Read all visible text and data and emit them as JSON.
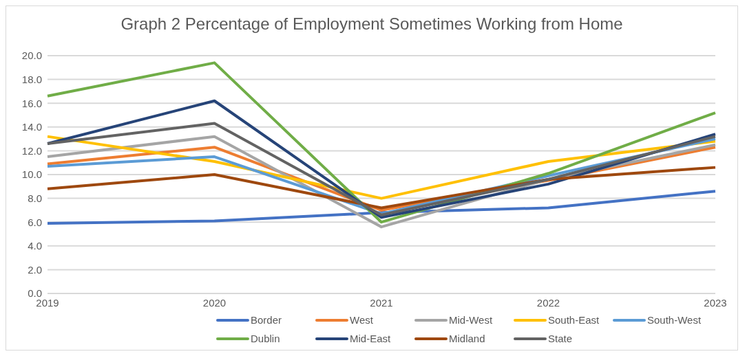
{
  "chart_data": {
    "type": "line",
    "title": "Graph 2 Percentage of Employment Sometimes Working from Home",
    "categories": [
      "2019",
      "2020",
      "2021",
      "2022",
      "2023"
    ],
    "series": [
      {
        "name": "Border",
        "color": "#4472c4",
        "values": [
          5.9,
          6.1,
          6.8,
          7.2,
          8.6
        ]
      },
      {
        "name": "West",
        "color": "#ed7d31",
        "values": [
          10.9,
          12.3,
          7.0,
          9.5,
          12.3
        ]
      },
      {
        "name": "Mid-West",
        "color": "#a5a5a5",
        "values": [
          11.5,
          13.2,
          5.6,
          9.6,
          12.5
        ]
      },
      {
        "name": "South-East",
        "color": "#ffc000",
        "values": [
          13.2,
          11.1,
          8.0,
          11.1,
          12.8
        ]
      },
      {
        "name": "South-West",
        "color": "#5b9bd5",
        "values": [
          10.7,
          11.5,
          6.7,
          9.9,
          13.0
        ]
      },
      {
        "name": "Dublin",
        "color": "#70ad47",
        "values": [
          16.6,
          19.4,
          6.0,
          10.1,
          15.2
        ]
      },
      {
        "name": "Mid-East",
        "color": "#264478",
        "values": [
          12.6,
          16.2,
          6.4,
          9.2,
          13.4
        ]
      },
      {
        "name": "Midland",
        "color": "#9e480e",
        "values": [
          8.8,
          10.0,
          7.2,
          9.6,
          10.6
        ]
      },
      {
        "name": "State",
        "color": "#636363",
        "values": [
          12.6,
          14.3,
          6.6,
          9.6,
          13.2
        ]
      }
    ],
    "ylim": [
      0,
      20
    ],
    "yticks": [
      {
        "value": 0,
        "label": "0.0"
      },
      {
        "value": 2,
        "label": "2.0"
      },
      {
        "value": 4,
        "label": "4.0"
      },
      {
        "value": 6,
        "label": "6.0"
      },
      {
        "value": 8,
        "label": "8.0"
      },
      {
        "value": 10,
        "label": "10.0"
      },
      {
        "value": 12,
        "label": "12.0"
      },
      {
        "value": 14,
        "label": "14.0"
      },
      {
        "value": 16,
        "label": "16.0"
      },
      {
        "value": 18,
        "label": "18.0"
      },
      {
        "value": 20,
        "label": "20.0"
      }
    ],
    "grid": "y",
    "legend": "bottom",
    "marker": "none",
    "line_style": "solid"
  }
}
